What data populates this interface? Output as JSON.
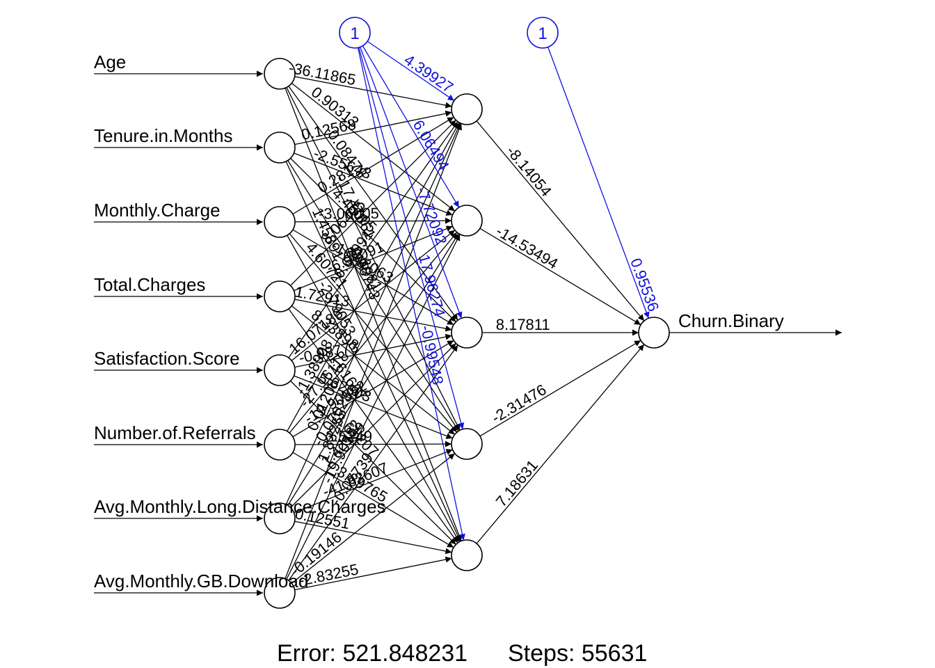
{
  "network": {
    "input_labels": [
      "Age",
      "Tenure.in.Months",
      "Monthly.Charge",
      "Total.Charges",
      "Satisfaction.Score",
      "Number.of.Referrals",
      "Avg.Monthly.Long.Distance.Charges",
      "Avg.Monthly.GB.Download"
    ],
    "output_label": "Churn.Binary",
    "bias_label": "1",
    "input_to_hidden_weights": [
      [
        "-36.11865",
        "0.90313",
        "-0.08478",
        "-17.47861",
        "0.96743"
      ],
      [
        "0.12568",
        "-2.55643",
        "4.45005",
        "-0.4981",
        "1.45891"
      ],
      [
        "0.281",
        "-3.06005",
        "-16.48063",
        "4.60721",
        "-2.79053"
      ],
      [
        "8.06405",
        "-6.94091",
        "1.72913",
        "8.33898",
        "-1.61667"
      ],
      [
        "-0.62991",
        "16.07186",
        "-0.98773",
        "-5.32603",
        "-3.61207"
      ],
      [
        "-1.38908",
        "-27.16118",
        "-19.90582",
        "3.5249",
        "3.89765"
      ],
      [
        "0.01208",
        "-0.07028",
        "1.42139",
        "-41.83607",
        "0.12551"
      ],
      [
        "1.83255",
        "-19.90582",
        "-0.07739",
        "-0.19146",
        "-2.83255"
      ]
    ],
    "hidden_bias_weights": [
      "4.39927",
      "6.06494",
      "-7.72092",
      "17.96274",
      "-0.99548"
    ],
    "hidden_to_output_weights": [
      "-8.14054",
      "-14.53494",
      "8.17811",
      "-2.31476",
      "7.18631"
    ],
    "output_bias_weight": "0.95536"
  },
  "footer": {
    "error_text": "Error: 521.848231",
    "steps_text": "Steps: 55631"
  }
}
